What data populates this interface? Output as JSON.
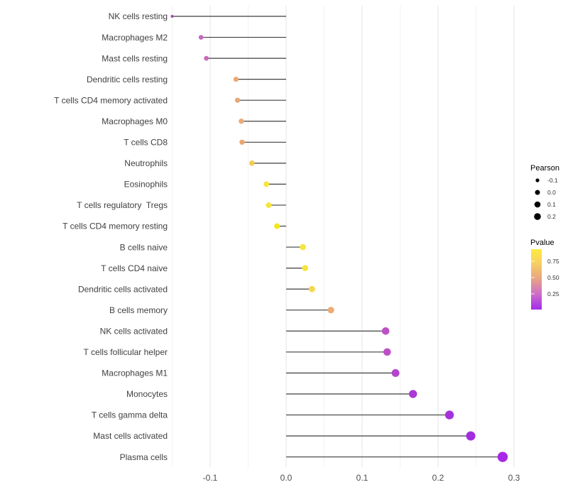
{
  "chart_data": {
    "type": "lollipop",
    "title": "",
    "xlabel": "",
    "ylabel": "",
    "grid": "vertical-major-minor",
    "background": "#ffffff",
    "stick_color": "#3f3f3f",
    "xlim": [
      -0.155,
      0.312
    ],
    "x_ticks": [
      -0.1,
      0.0,
      0.1,
      0.2,
      0.3
    ],
    "x_tick_labels": [
      "-0.1",
      "0.0",
      "0.1",
      "0.2",
      "0.3"
    ],
    "x_minor_ticks": [
      -0.15,
      -0.05,
      0.05,
      0.15,
      0.25
    ],
    "categories": [
      "NK cells resting",
      "Macrophages M2",
      "Mast cells resting",
      "Dendritic cells resting",
      "T cells CD4 memory activated",
      "Macrophages M0",
      "T cells CD8",
      "Neutrophils",
      "Eosinophils",
      "T cells regulatory  Tregs",
      "T cells CD4 memory resting",
      "B cells naive",
      "T cells CD4 naive",
      "Dendritic cells activated",
      "B cells memory",
      "NK cells activated",
      "T cells follicular helper",
      "Macrophages M1",
      "Monocytes",
      "T cells gamma delta",
      "Mast cells activated",
      "Plasma cells"
    ],
    "values": [
      -0.15,
      -0.112,
      -0.105,
      -0.066,
      -0.064,
      -0.059,
      -0.058,
      -0.045,
      -0.026,
      -0.023,
      -0.012,
      0.022,
      0.025,
      0.034,
      0.059,
      0.131,
      0.133,
      0.144,
      0.167,
      0.215,
      0.243,
      0.285
    ],
    "point_colors": [
      "#9C48AC",
      "#C768BE",
      "#C96CB9",
      "#EBA877",
      "#E9A675",
      "#ECAB79",
      "#EAA772",
      "#F3CB55",
      "#F6E63C",
      "#F6E63C",
      "#F2E71E",
      "#F6E53E",
      "#F5E442",
      "#F4D94D",
      "#EDAC73",
      "#BD50C5",
      "#BC4FC5",
      "#B445CD",
      "#AB39D6",
      "#A531DE",
      "#A22CDF",
      "#A828E8"
    ],
    "point_radii": [
      2.0,
      3.3,
      3.4,
      3.6,
      3.6,
      3.7,
      3.7,
      3.8,
      3.9,
      3.9,
      4.0,
      4.3,
      4.3,
      4.4,
      4.6,
      5.3,
      5.3,
      5.5,
      5.7,
      6.2,
      6.5,
      7.2
    ],
    "legend_position": "right",
    "size_legend": {
      "title": "Pearson",
      "dot_color": "#000000",
      "items": [
        {
          "label": "-0.1",
          "r": 2.6
        },
        {
          "label": "0.0",
          "r": 3.5
        },
        {
          "label": "0.1",
          "r": 4.3
        },
        {
          "label": "0.2",
          "r": 4.8
        }
      ]
    },
    "color_legend": {
      "title": "Pvalue",
      "tick_labels": [
        "0.75",
        "0.50",
        "0.25"
      ],
      "tick_offsets": [
        0.2,
        0.47,
        0.74
      ],
      "gradient_stops": [
        {
          "offset": 0.0,
          "color": "#FBEB3E"
        },
        {
          "offset": 0.2,
          "color": "#F8D45E"
        },
        {
          "offset": 0.47,
          "color": "#E9A87F"
        },
        {
          "offset": 0.74,
          "color": "#CD6EC7"
        },
        {
          "offset": 1.0,
          "color": "#A32CE9"
        }
      ]
    }
  }
}
